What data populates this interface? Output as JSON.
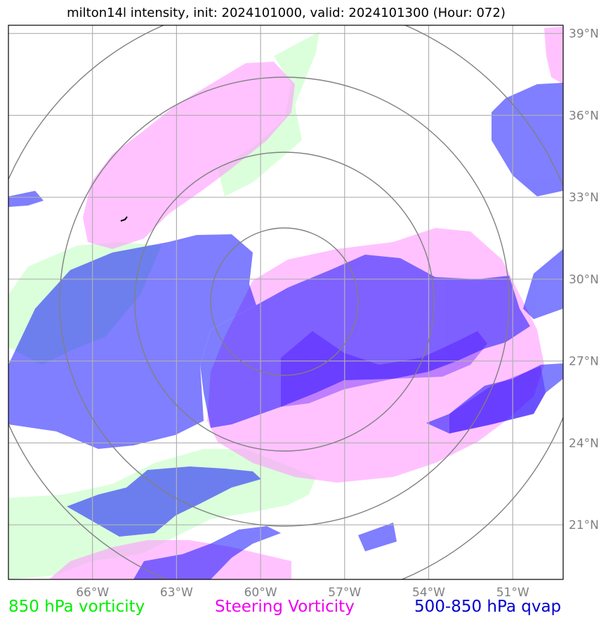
{
  "title": "milton14l intensity, init: 2024101000, valid: 2024101300 (Hour: 072)",
  "map": {
    "lon_range": [
      -69,
      -49.2
    ],
    "lat_range": [
      19.0,
      39.3
    ],
    "lon_ticks": [
      {
        "lon": -66,
        "label": "66°W"
      },
      {
        "lon": -63,
        "label": "63°W"
      },
      {
        "lon": -60,
        "label": "60°W"
      },
      {
        "lon": -57,
        "label": "57°W"
      },
      {
        "lon": -54,
        "label": "54°W"
      },
      {
        "lon": -51,
        "label": "51°W"
      }
    ],
    "lat_ticks": [
      {
        "lat": 39,
        "label": "39°N"
      },
      {
        "lat": 36,
        "label": "36°N"
      },
      {
        "lat": 33,
        "label": "33°N"
      },
      {
        "lat": 30,
        "label": "30°N"
      },
      {
        "lat": 27,
        "label": "27°N"
      },
      {
        "lat": 24,
        "label": "24°N"
      },
      {
        "lat": 21,
        "label": "21°N"
      }
    ],
    "colors": {
      "vort850": "#ccffcc",
      "steering": "#ff99ff",
      "qvap": "#0000ff",
      "grid": "#b0b0b0",
      "rings": "#808080"
    }
  },
  "legend": {
    "vort850": {
      "label": "850 hPa vorticity",
      "color": "#00ee00"
    },
    "steering": {
      "label": "Steering Vorticity",
      "color": "#ee00ee"
    },
    "qvap": {
      "label": "500-850 hPa qvap",
      "color": "#0000cc"
    }
  }
}
